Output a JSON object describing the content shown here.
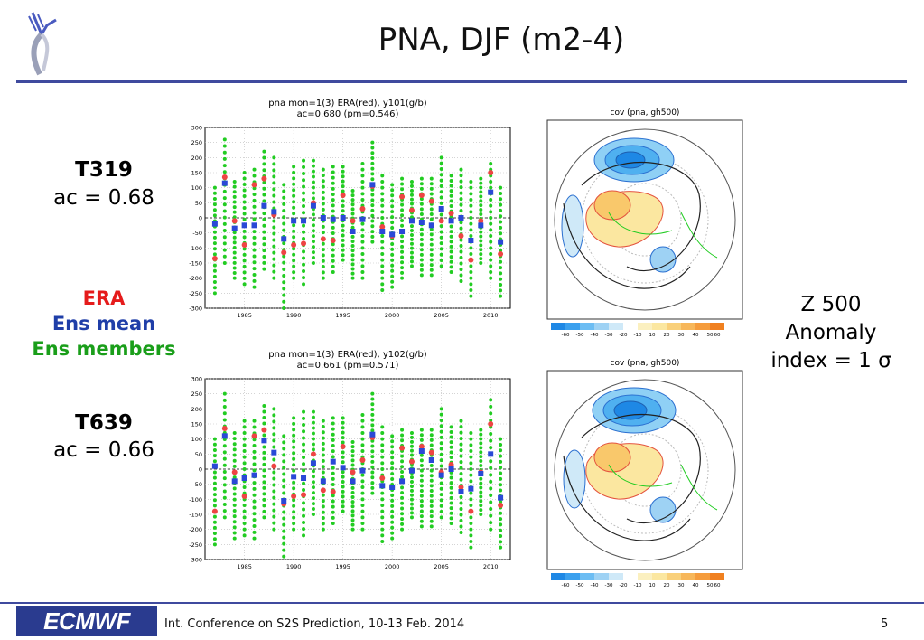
{
  "slide": {
    "title": "PNA, DJF (m2-4)",
    "t319_title": "T319",
    "t319_ac": "ac = 0.68",
    "t639_title": "T639",
    "t639_ac": "ac = 0.66",
    "legend_era": "ERA",
    "legend_ens_mean": "Ens mean",
    "legend_ens_members": "Ens members",
    "z500_line1": "Z 500",
    "z500_line2": "Anomaly",
    "z500_line3": "index = 1 σ",
    "footer_logo": "ECMWF",
    "footer_text": "Int. Conference on S2S Prediction, 10-13 Feb. 2014",
    "page_number": "5"
  },
  "colors": {
    "era": "#ee4444",
    "ens_mean": "#2a49d6",
    "ens_members": "#22cc22",
    "title_rule": "#3f4a9e"
  },
  "chart_data": [
    {
      "type": "scatter",
      "title": "pna   mon=1(3)  ERA(red),  y101(g/b)",
      "subtitle": "ac=0.680  (pm=0.546)",
      "x": [
        1982,
        1983,
        1984,
        1985,
        1986,
        1987,
        1988,
        1989,
        1990,
        1991,
        1992,
        1993,
        1994,
        1995,
        1996,
        1997,
        1998,
        1999,
        2000,
        2001,
        2002,
        2003,
        2004,
        2005,
        2006,
        2007,
        2008,
        2009,
        2010,
        2011
      ],
      "era": [
        -135,
        135,
        -10,
        -90,
        110,
        130,
        10,
        -115,
        -90,
        -85,
        50,
        -70,
        -75,
        75,
        -10,
        30,
        105,
        -30,
        -60,
        70,
        25,
        75,
        55,
        -10,
        15,
        -60,
        -140,
        -10,
        150,
        -120
      ],
      "ens_mean": [
        -20,
        115,
        -35,
        -25,
        -25,
        40,
        20,
        -70,
        -10,
        -10,
        40,
        0,
        -5,
        0,
        -45,
        -5,
        110,
        -45,
        -55,
        -45,
        -10,
        -15,
        -25,
        30,
        -10,
        0,
        -75,
        -25,
        85,
        -80
      ],
      "ens_spread": [
        [
          -250,
          100
        ],
        [
          -150,
          260
        ],
        [
          -200,
          120
        ],
        [
          -220,
          150
        ],
        [
          -230,
          160
        ],
        [
          -170,
          220
        ],
        [
          -200,
          200
        ],
        [
          -300,
          110
        ],
        [
          -200,
          170
        ],
        [
          -220,
          190
        ],
        [
          -150,
          190
        ],
        [
          -200,
          160
        ],
        [
          -180,
          170
        ],
        [
          -140,
          170
        ],
        [
          -200,
          90
        ],
        [
          -200,
          180
        ],
        [
          -80,
          250
        ],
        [
          -240,
          140
        ],
        [
          -230,
          110
        ],
        [
          -200,
          130
        ],
        [
          -160,
          120
        ],
        [
          -190,
          130
        ],
        [
          -190,
          130
        ],
        [
          -160,
          200
        ],
        [
          -180,
          140
        ],
        [
          -210,
          160
        ],
        [
          -260,
          120
        ],
        [
          -150,
          130
        ],
        [
          -200,
          180
        ],
        [
          -260,
          100
        ]
      ],
      "xticks": [
        1985,
        1990,
        1995,
        2000,
        2005,
        2010
      ],
      "yticks": [
        300,
        250,
        200,
        150,
        100,
        50,
        0,
        -50,
        -100,
        -150,
        -200,
        -250,
        -300
      ],
      "ylim": [
        -300,
        300
      ],
      "xlabel": "",
      "ylabel": ""
    },
    {
      "type": "scatter",
      "title": "pna   mon=1(3)  ERA(red),  y102(g/b)",
      "subtitle": "ac=0.661  (pm=0.571)",
      "x": [
        1982,
        1983,
        1984,
        1985,
        1986,
        1987,
        1988,
        1989,
        1990,
        1991,
        1992,
        1993,
        1994,
        1995,
        1996,
        1997,
        1998,
        1999,
        2000,
        2001,
        2002,
        2003,
        2004,
        2005,
        2006,
        2007,
        2008,
        2009,
        2010,
        2011
      ],
      "era": [
        -140,
        135,
        -10,
        -90,
        110,
        130,
        10,
        -115,
        -90,
        -85,
        50,
        -70,
        -75,
        75,
        -10,
        30,
        105,
        -30,
        -60,
        70,
        25,
        75,
        55,
        -10,
        15,
        -60,
        -140,
        -10,
        150,
        -120
      ],
      "ens_mean": [
        10,
        110,
        -40,
        -30,
        -20,
        95,
        55,
        -105,
        -25,
        -30,
        20,
        -40,
        25,
        5,
        -40,
        -5,
        115,
        -55,
        -60,
        -40,
        -5,
        60,
        30,
        -20,
        0,
        -75,
        -65,
        -15,
        50,
        -95
      ],
      "ens_spread": [
        [
          -250,
          100
        ],
        [
          -160,
          250
        ],
        [
          -230,
          120
        ],
        [
          -220,
          160
        ],
        [
          -230,
          160
        ],
        [
          -160,
          210
        ],
        [
          -200,
          200
        ],
        [
          -290,
          110
        ],
        [
          -200,
          170
        ],
        [
          -220,
          190
        ],
        [
          -150,
          190
        ],
        [
          -200,
          160
        ],
        [
          -180,
          170
        ],
        [
          -140,
          170
        ],
        [
          -200,
          90
        ],
        [
          -200,
          180
        ],
        [
          -80,
          250
        ],
        [
          -240,
          140
        ],
        [
          -230,
          110
        ],
        [
          -200,
          130
        ],
        [
          -160,
          120
        ],
        [
          -190,
          130
        ],
        [
          -190,
          130
        ],
        [
          -160,
          200
        ],
        [
          -180,
          140
        ],
        [
          -210,
          160
        ],
        [
          -260,
          120
        ],
        [
          -150,
          130
        ],
        [
          -200,
          230
        ],
        [
          -260,
          100
        ]
      ],
      "xticks": [
        1985,
        1990,
        1995,
        2000,
        2005,
        2010
      ],
      "yticks": [
        300,
        250,
        200,
        150,
        100,
        50,
        0,
        -50,
        -100,
        -150,
        -200,
        -250,
        -300
      ],
      "ylim": [
        -300,
        300
      ],
      "xlabel": "",
      "ylabel": ""
    }
  ],
  "maps": [
    {
      "title": "cov (pna, gh500)",
      "colorbar_ticks": [
        "-60",
        "-50",
        "-40",
        "-30",
        "-20",
        "-10",
        "10",
        "20",
        "30",
        "40",
        "50",
        "60"
      ]
    },
    {
      "title": "cov (pna, gh500)",
      "colorbar_ticks": [
        "-60",
        "-50",
        "-40",
        "-30",
        "-20",
        "-10",
        "10",
        "20",
        "30",
        "40",
        "50",
        "60"
      ]
    }
  ]
}
